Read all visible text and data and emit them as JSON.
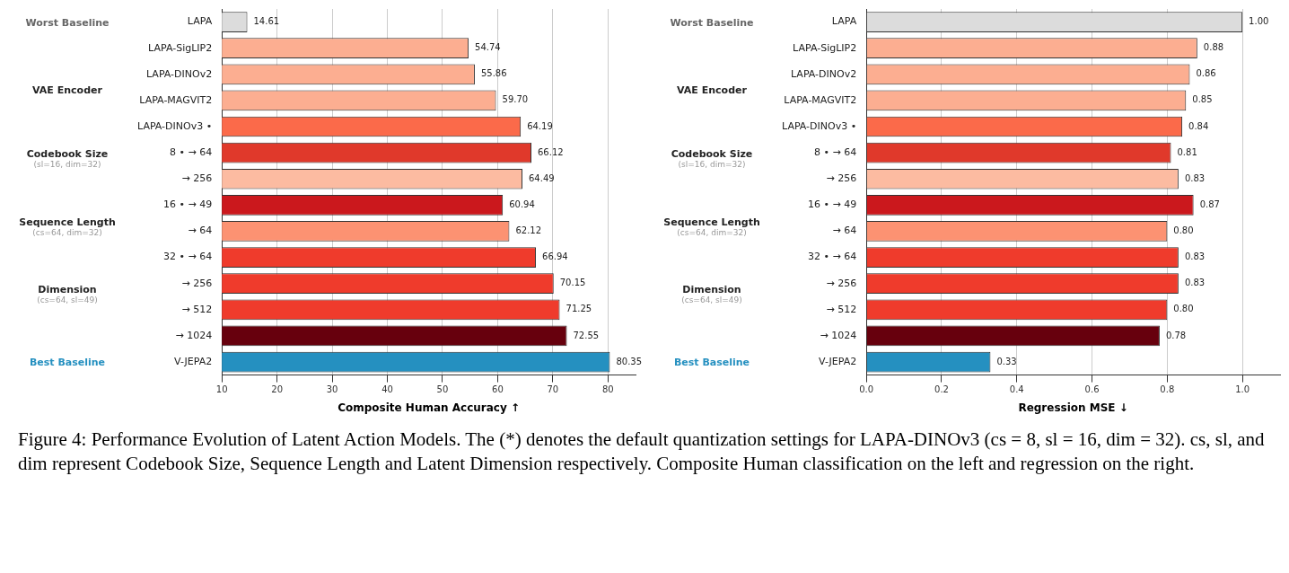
{
  "chart_data": [
    {
      "type": "bar",
      "orientation": "horizontal",
      "xlabel": "Composite Human Accuracy ↑",
      "categories": [
        "LAPA",
        "LAPA-SigLIP2",
        "LAPA-DINOv2",
        "LAPA-MAGVIT2",
        "LAPA-DINOv3 •",
        "8 • → 64",
        "→ 256",
        "16 • → 49",
        "→ 64",
        "32 • → 64",
        "→ 256",
        "→ 512",
        "→ 1024",
        "V-JEPA2"
      ],
      "values": [
        14.61,
        54.74,
        55.86,
        59.7,
        64.19,
        66.12,
        64.49,
        60.94,
        62.12,
        66.94,
        70.15,
        71.25,
        72.55,
        80.35
      ],
      "value_labels": [
        "14.61",
        "54.74",
        "55.86",
        "59.70",
        "64.19",
        "66.12",
        "64.49",
        "60.94",
        "62.12",
        "66.94",
        "70.15",
        "71.25",
        "72.55",
        "80.35"
      ],
      "colors": [
        "#dcdcdc",
        "#fcae91",
        "#fcae91",
        "#fcae91",
        "#fb6a4a",
        "#e0392b",
        "#fcbba1",
        "#cb181d",
        "#fc9272",
        "#ef3b2c",
        "#ef3b2c",
        "#ef3b2c",
        "#67000d",
        "#2590c0"
      ],
      "xlim": [
        10,
        85
      ],
      "xticks": [
        10,
        20,
        30,
        40,
        50,
        60,
        70,
        80
      ],
      "grid": "x",
      "legend": false,
      "annotations": [
        "Worst Baseline",
        "VAE Encoder",
        "Codebook Size\n(sl=16, dim=32)",
        "Sequence Length\n(cs=64, dim=32)",
        "Dimension\n(cs=64, sl=49)",
        "Best Baseline"
      ]
    },
    {
      "type": "bar",
      "orientation": "horizontal",
      "xlabel": "Regression MSE ↓",
      "categories": [
        "LAPA",
        "LAPA-SigLIP2",
        "LAPA-DINOv2",
        "LAPA-MAGVIT2",
        "LAPA-DINOv3 •",
        "8 • → 64",
        "→ 256",
        "16 • → 49",
        "→ 64",
        "32 • → 64",
        "→ 256",
        "→ 512",
        "→ 1024",
        "V-JEPA2"
      ],
      "values": [
        1.0,
        0.88,
        0.86,
        0.85,
        0.84,
        0.81,
        0.83,
        0.87,
        0.8,
        0.83,
        0.83,
        0.8,
        0.78,
        0.33
      ],
      "value_labels": [
        "1.00",
        "0.88",
        "0.86",
        "0.85",
        "0.84",
        "0.81",
        "0.83",
        "0.87",
        "0.80",
        "0.83",
        "0.83",
        "0.80",
        "0.78",
        "0.33"
      ],
      "colors": [
        "#dcdcdc",
        "#fcae91",
        "#fcae91",
        "#fcae91",
        "#fb6a4a",
        "#e0392b",
        "#fcbba1",
        "#cb181d",
        "#fc9272",
        "#ef3b2c",
        "#ef3b2c",
        "#ef3b2c",
        "#67000d",
        "#2590c0"
      ],
      "xlim": [
        0,
        1.1
      ],
      "xticks": [
        {
          "value": 0,
          "label": "0.0"
        },
        {
          "value": 0.2,
          "label": "0.2"
        },
        {
          "value": 0.4,
          "label": "0.4"
        },
        {
          "value": 0.6,
          "label": "0.6"
        },
        {
          "value": 0.8,
          "label": "0.8"
        },
        {
          "value": 1.0,
          "label": "1.0"
        }
      ],
      "grid": "x",
      "legend": false,
      "annotations": [
        "Worst Baseline",
        "VAE Encoder",
        "Codebook Size\n(sl=16, dim=32)",
        "Sequence Length\n(cs=64, dim=32)",
        "Dimension\n(cs=64, sl=49)",
        "Best Baseline",
        "Figure 4: Performance Evolution of Latent Action Models. The (*) denotes the default quantization settings for LAPA-DINOv3 (cs = 8, sl = 16, dim = 32). cs, sl, and dim represent Codebook Size, Sequence Length and Latent Dimension respectively. Composite Human classification on the left and regression on the right."
      ]
    }
  ]
}
